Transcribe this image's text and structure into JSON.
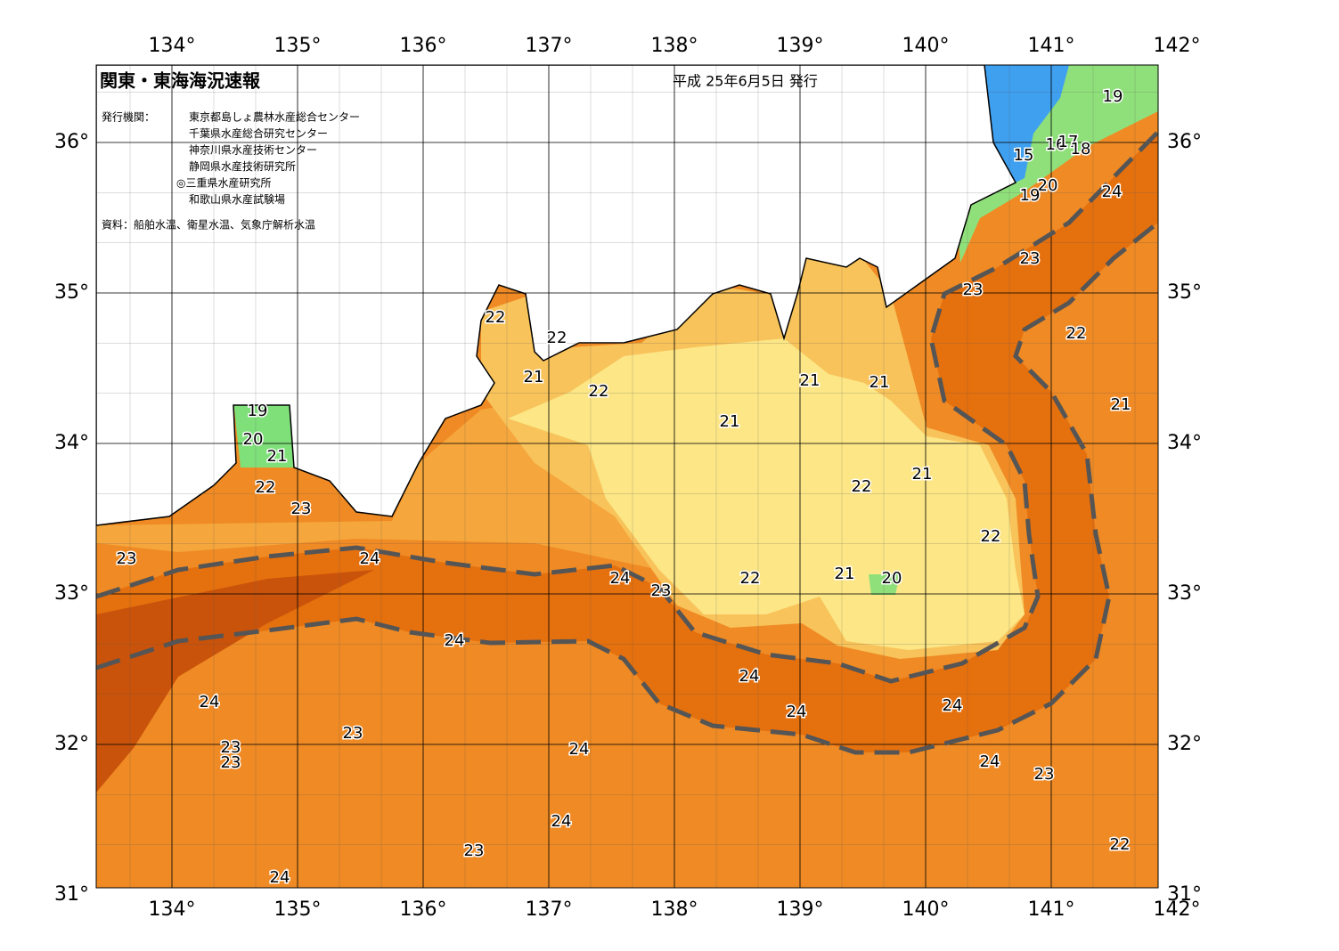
{
  "header": {
    "title": "関東・東海海況速報",
    "date": "平成 25年6月5日 発行"
  },
  "publishers": {
    "label": "発行機関：",
    "names": [
      "東京都島しょ農林水産総合センター",
      "千葉県水産総合研究センター",
      "神奈川県水産技術センター",
      "静岡県水産技術研究所",
      "◎三重県水産研究所",
      "和歌山県水産試験場"
    ]
  },
  "source": "資料：船舶水温、衛星水温、気象庁解析水温",
  "lon_ticks": [
    {
      "value": 134,
      "label": "134°"
    },
    {
      "value": 135,
      "label": "135°"
    },
    {
      "value": 136,
      "label": "136°"
    },
    {
      "value": 137,
      "label": "137°"
    },
    {
      "value": 138,
      "label": "138°"
    },
    {
      "value": 139,
      "label": "139°"
    },
    {
      "value": 140,
      "label": "140°"
    },
    {
      "value": 141,
      "label": "141°"
    },
    {
      "value": 142,
      "label": "142°"
    }
  ],
  "lat_ticks": [
    {
      "value": 31,
      "label": "31°"
    },
    {
      "value": 32,
      "label": "32°"
    },
    {
      "value": 33,
      "label": "33°"
    },
    {
      "value": 34,
      "label": "34°"
    },
    {
      "value": 35,
      "label": "35°"
    },
    {
      "value": 36,
      "label": "36°"
    }
  ],
  "contour_labels": [
    23,
    24,
    22,
    23,
    21,
    20,
    19,
    22,
    22,
    21,
    22,
    21,
    21,
    21,
    22,
    21,
    22,
    21,
    20,
    22,
    24,
    23,
    24,
    24,
    23,
    23,
    23,
    24,
    24,
    24,
    24,
    24,
    23,
    24,
    23,
    24,
    22,
    21,
    22,
    23,
    23,
    24,
    19,
    15,
    16,
    17,
    18,
    20,
    19
  ]
}
